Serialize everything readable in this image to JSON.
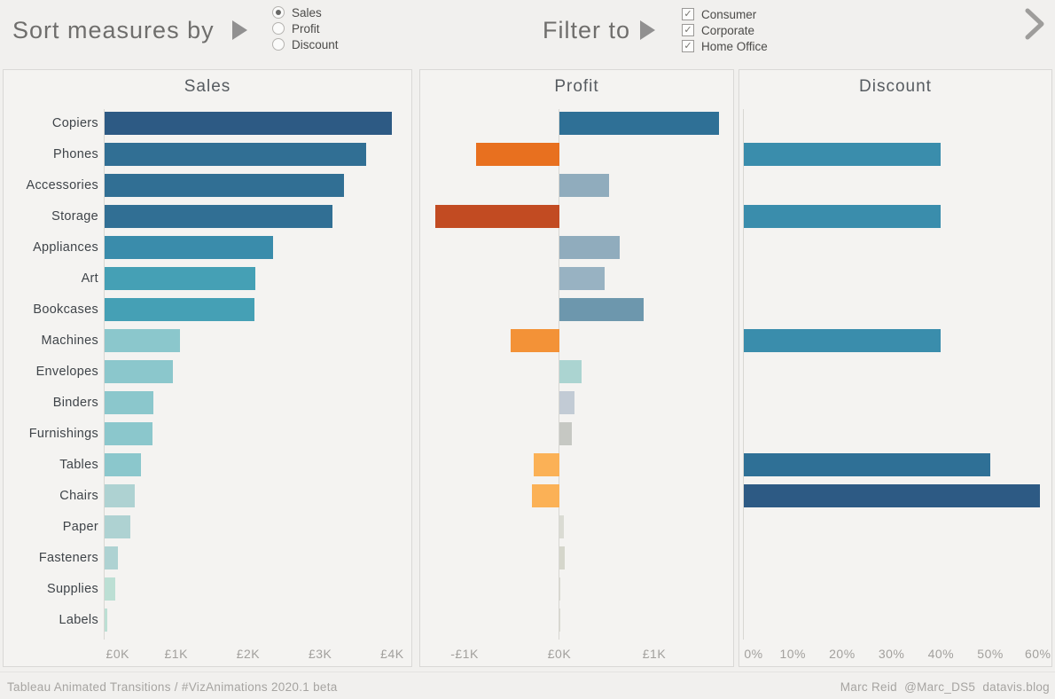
{
  "header": {
    "sort": {
      "label": "Sort measures by",
      "options": [
        {
          "label": "Sales",
          "selected": true
        },
        {
          "label": "Profit",
          "selected": false
        },
        {
          "label": "Discount",
          "selected": false
        }
      ]
    },
    "filter": {
      "label": "Filter to",
      "options": [
        {
          "label": "Consumer",
          "checked": true
        },
        {
          "label": "Corporate",
          "checked": true
        },
        {
          "label": "Home Office",
          "checked": true
        }
      ]
    }
  },
  "footer": {
    "left": "Tableau Animated Transitions / #VizAnimations 2020.1 beta",
    "right": "Marc Reid  @Marc_DS5  datavis.blog"
  },
  "chart_data": [
    {
      "type": "bar",
      "orientation": "horizontal",
      "title": "Sales",
      "unit": "£K",
      "categories": [
        "Copiers",
        "Phones",
        "Accessories",
        "Storage",
        "Appliances",
        "Art",
        "Bookcases",
        "Machines",
        "Envelopes",
        "Binders",
        "Furnishings",
        "Tables",
        "Chairs",
        "Paper",
        "Fasteners",
        "Supplies",
        "Labels"
      ],
      "values": [
        4.0,
        3.64,
        3.33,
        3.17,
        2.35,
        2.1,
        2.09,
        1.05,
        0.96,
        0.68,
        0.67,
        0.51,
        0.43,
        0.36,
        0.19,
        0.16,
        0.04
      ],
      "bar_colors": [
        "#2d5a84",
        "#316f94",
        "#316f94",
        "#316f94",
        "#3a8cab",
        "#45a0b5",
        "#45a0b5",
        "#8bc7cc",
        "#8bc7cc",
        "#8bc7cc",
        "#8bc7cc",
        "#8bc7cc",
        "#aed2d2",
        "#aed2d2",
        "#aed2d2",
        "#bcdfd4",
        "#bcdfd4"
      ],
      "x_ticks": [
        {
          "value": 0,
          "label": "£0K"
        },
        {
          "value": 1,
          "label": "£1K"
        },
        {
          "value": 2,
          "label": "£2K"
        },
        {
          "value": 3,
          "label": "£3K"
        },
        {
          "value": 4,
          "label": "£4K"
        }
      ],
      "xlim": [
        0,
        4.18
      ],
      "grid": false
    },
    {
      "type": "bar",
      "orientation": "horizontal",
      "title": "Profit",
      "unit": "£K",
      "categories": [
        "Copiers",
        "Phones",
        "Accessories",
        "Storage",
        "Appliances",
        "Art",
        "Bookcases",
        "Machines",
        "Envelopes",
        "Binders",
        "Furnishings",
        "Tables",
        "Chairs",
        "Paper",
        "Fasteners",
        "Supplies",
        "Labels"
      ],
      "values": [
        1.68,
        -0.88,
        0.52,
        -1.31,
        0.64,
        0.48,
        0.89,
        -0.51,
        0.23,
        0.16,
        0.13,
        -0.27,
        -0.29,
        0.05,
        0.06,
        0.01,
        0.01
      ],
      "bar_colors": [
        "#2f7096",
        "#e8701f",
        "#90acbd",
        "#c24b22",
        "#90acbd",
        "#98b2c2",
        "#6d97ad",
        "#f39237",
        "#abd4d1",
        "#c2cbd5",
        "#c6c8c3",
        "#fbb156",
        "#fbb156",
        "#dadbd3",
        "#d5d6cb",
        "#d8d8d0",
        "#d8d8d0"
      ],
      "x_ticks": [
        {
          "value": -1,
          "label": "-£1K"
        },
        {
          "value": 0,
          "label": "£0K"
        },
        {
          "value": 1,
          "label": "£1K"
        }
      ],
      "xlim": [
        -1.374,
        1.748
      ],
      "grid": false
    },
    {
      "type": "bar",
      "orientation": "horizontal",
      "title": "Discount",
      "unit": "%",
      "categories": [
        "Copiers",
        "Phones",
        "Accessories",
        "Storage",
        "Appliances",
        "Art",
        "Bookcases",
        "Machines",
        "Envelopes",
        "Binders",
        "Furnishings",
        "Tables",
        "Chairs",
        "Paper",
        "Fasteners",
        "Supplies",
        "Labels"
      ],
      "values": [
        0,
        40,
        0,
        40,
        0,
        0,
        0,
        40,
        0,
        0,
        0,
        50,
        60,
        0,
        0,
        0,
        0
      ],
      "bar_colors": [
        null,
        "#3a8dac",
        null,
        "#3a8dac",
        null,
        null,
        null,
        "#3a8dac",
        null,
        null,
        null,
        "#2f7096",
        "#2d5a84",
        null,
        null,
        null,
        null
      ],
      "x_ticks": [
        {
          "value": 0,
          "label": "0%"
        },
        {
          "value": 10,
          "label": "10%"
        },
        {
          "value": 20,
          "label": "20%"
        },
        {
          "value": 30,
          "label": "30%"
        },
        {
          "value": 40,
          "label": "40%"
        },
        {
          "value": 50,
          "label": "50%"
        },
        {
          "value": 60,
          "label": "60%"
        }
      ],
      "xlim": [
        0,
        61.3
      ],
      "grid": false
    }
  ]
}
